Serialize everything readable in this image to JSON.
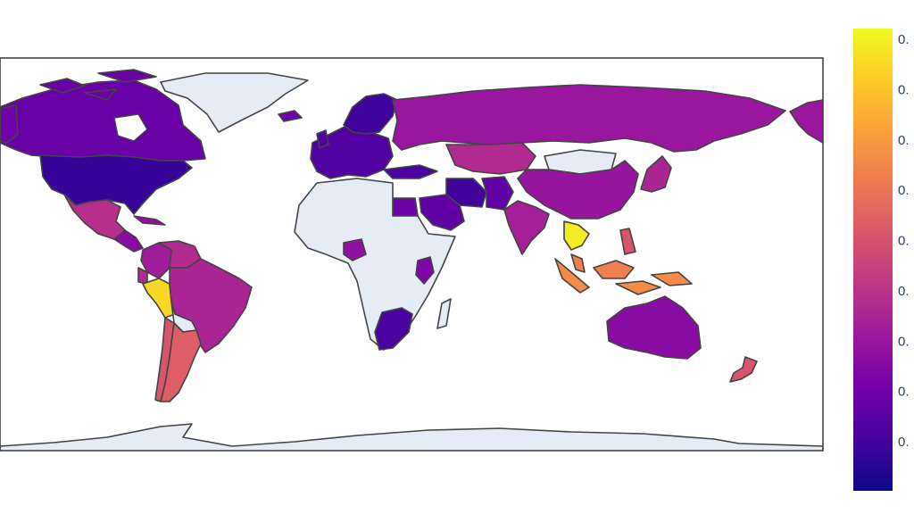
{
  "chart_data": {
    "type": "choropleth",
    "projection": "equirectangular",
    "no_data_color": "#e5ecf6",
    "border_color": "#444444",
    "colorscale": [
      "#0d0887",
      "#46039f",
      "#7201a8",
      "#9c179e",
      "#bd3786",
      "#d8576b",
      "#ed7953",
      "#fb9f3a",
      "#fdca26",
      "#f0f921"
    ],
    "colorbar": {
      "tick_labels": [
        "0.",
        "0.",
        "0.",
        "0.",
        "0.",
        "0.",
        "0.",
        "0.",
        "0."
      ]
    },
    "regions": [
      {
        "name": "Canada",
        "value": 0.2
      },
      {
        "name": "United States",
        "value": 0.08
      },
      {
        "name": "Mexico",
        "value": 0.42
      },
      {
        "name": "Colombia",
        "value": 0.35
      },
      {
        "name": "Venezuela",
        "value": 0.4
      },
      {
        "name": "Peru",
        "value": 0.92
      },
      {
        "name": "Brazil",
        "value": 0.38
      },
      {
        "name": "Argentina",
        "value": 0.58
      },
      {
        "name": "Chile",
        "value": 0.55
      },
      {
        "name": "Russia",
        "value": 0.33
      },
      {
        "name": "China",
        "value": 0.32
      },
      {
        "name": "India",
        "value": 0.36
      },
      {
        "name": "Thailand",
        "value": 0.97
      },
      {
        "name": "Malaysia",
        "value": 0.68
      },
      {
        "name": "Indonesia",
        "value": 0.72
      },
      {
        "name": "Australia",
        "value": 0.28
      },
      {
        "name": "New Zealand",
        "value": 0.55
      },
      {
        "name": "Japan",
        "value": 0.38
      },
      {
        "name": "Iran",
        "value": 0.1
      },
      {
        "name": "Saudi Arabia",
        "value": 0.18
      },
      {
        "name": "Egypt",
        "value": 0.22
      },
      {
        "name": "South Africa",
        "value": 0.12
      },
      {
        "name": "Nigeria",
        "value": 0.3
      },
      {
        "name": "Kenya",
        "value": 0.25
      }
    ]
  }
}
